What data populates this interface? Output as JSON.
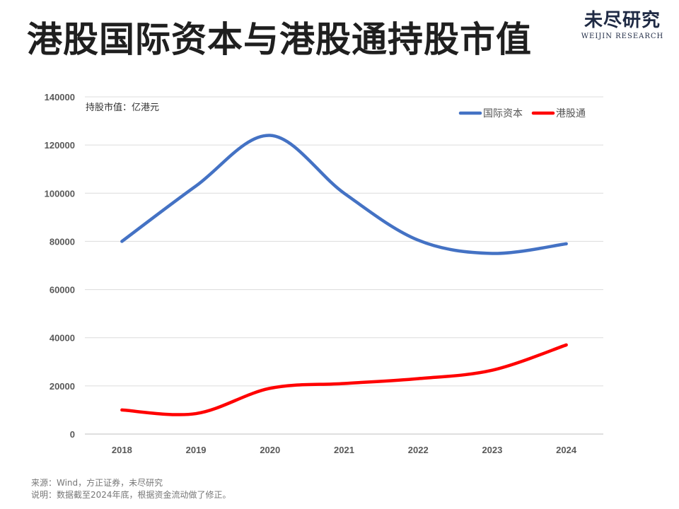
{
  "title": "港股国际资本与港股通持股市值",
  "brand": {
    "name_cn": "未尽研究",
    "name_en": "WEIJIN RESEARCH",
    "color": "#1f2a44"
  },
  "chart_data": {
    "type": "line",
    "unit_label": "持股市值：亿港元",
    "x": [
      "2018",
      "2019",
      "2020",
      "2021",
      "2022",
      "2023",
      "2024"
    ],
    "yticks": [
      "0",
      "20000",
      "40000",
      "60000",
      "80000",
      "100000",
      "120000",
      "140000"
    ],
    "ylim": [
      0,
      140000
    ],
    "grid": true,
    "legend_position": "top-right",
    "series": [
      {
        "name": "国际资本",
        "color": "#4472C4",
        "values": [
          80000,
          103000,
          124000,
          100000,
          80500,
          75000,
          79000
        ]
      },
      {
        "name": "港股通",
        "color": "#FF0000",
        "values": [
          10000,
          8500,
          19000,
          21000,
          23000,
          26500,
          37000
        ]
      }
    ]
  },
  "notes": {
    "source": "来源：Wind，方正证券，未尽研究",
    "explanation": "说明：数据截至2024年底，根据资金流动做了修正。"
  }
}
